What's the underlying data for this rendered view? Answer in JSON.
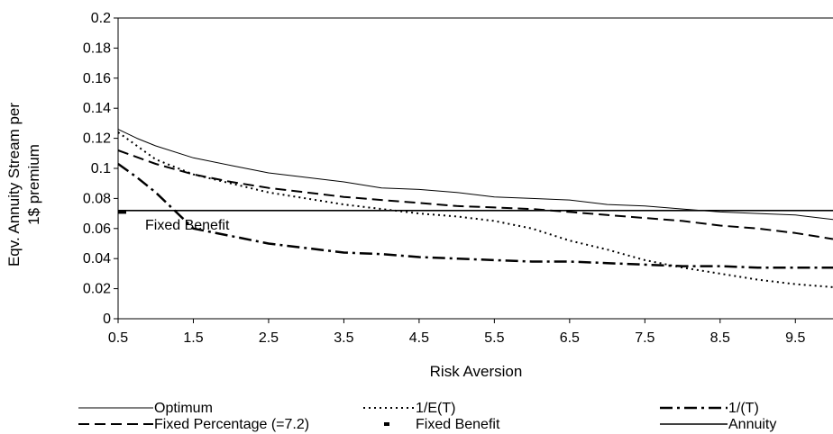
{
  "chart_data": {
    "type": "line",
    "xlabel": "Risk Aversion",
    "ylabel_lines": [
      "Eqv. Annuity Stream per",
      "1$ premium"
    ],
    "xlim": [
      0.5,
      10
    ],
    "ylim": [
      0,
      0.2
    ],
    "x_ticks": [
      "0.5",
      "1.5",
      "2.5",
      "3.5",
      "4.5",
      "5.5",
      "6.5",
      "7.5",
      "8.5",
      "9.5"
    ],
    "y_ticks": [
      "0",
      "0.02",
      "0.04",
      "0.06",
      "0.08",
      "0.1",
      "0.12",
      "0.14",
      "0.16",
      "0.18",
      "0.2"
    ],
    "grid": false,
    "legend_position": "bottom",
    "annotation": "Fixed Benefit",
    "series": [
      {
        "name": "Optimum",
        "style": "solid-thin",
        "x": [
          0.5,
          0.75,
          1,
          1.5,
          2,
          2.5,
          3,
          3.5,
          4,
          4.5,
          5,
          5.5,
          6,
          6.5,
          7,
          7.5,
          8,
          8.5,
          9,
          9.5,
          10
        ],
        "y": [
          0.126,
          0.12,
          0.115,
          0.107,
          0.102,
          0.097,
          0.094,
          0.091,
          0.087,
          0.086,
          0.084,
          0.081,
          0.08,
          0.079,
          0.076,
          0.075,
          0.073,
          0.071,
          0.07,
          0.069,
          0.066
        ]
      },
      {
        "name": "1/E(T)",
        "style": "dotted",
        "x": [
          0.5,
          0.75,
          1,
          1.5,
          2,
          2.5,
          3,
          3.5,
          4,
          4.5,
          5,
          5.5,
          6,
          6.5,
          7,
          7.5,
          8,
          8.5,
          9,
          9.5,
          10
        ],
        "y": [
          0.124,
          0.115,
          0.106,
          0.096,
          0.09,
          0.084,
          0.08,
          0.076,
          0.073,
          0.07,
          0.068,
          0.065,
          0.06,
          0.052,
          0.046,
          0.039,
          0.034,
          0.03,
          0.026,
          0.023,
          0.021
        ]
      },
      {
        "name": "1/(T)",
        "style": "dash-dot",
        "x": [
          0.5,
          0.75,
          1,
          1.5,
          2,
          2.5,
          3,
          3.5,
          4,
          4.5,
          5,
          5.5,
          6,
          6.5,
          7,
          7.5,
          8,
          8.5,
          9,
          9.5,
          10
        ],
        "y": [
          0.103,
          0.094,
          0.084,
          0.06,
          0.055,
          0.05,
          0.047,
          0.044,
          0.043,
          0.041,
          0.04,
          0.039,
          0.038,
          0.038,
          0.037,
          0.036,
          0.035,
          0.035,
          0.034,
          0.034,
          0.034
        ]
      },
      {
        "name": "Fixed Percentage (=7.2)",
        "style": "dashed",
        "x": [
          0.5,
          1,
          1.5,
          2,
          2.5,
          3,
          3.5,
          4,
          4.5,
          5,
          5.5,
          6,
          6.5,
          7,
          7.5,
          8,
          8.5,
          9,
          9.5,
          10
        ],
        "y": [
          0.112,
          0.103,
          0.096,
          0.091,
          0.087,
          0.084,
          0.081,
          0.079,
          0.077,
          0.075,
          0.074,
          0.073,
          0.071,
          0.069,
          0.067,
          0.065,
          0.062,
          0.06,
          0.057,
          0.053
        ]
      },
      {
        "name": "Fixed Benefit",
        "style": "marker",
        "x": [
          0.5
        ],
        "y": [
          0.071
        ]
      },
      {
        "name": "Annuity",
        "style": "solid",
        "x": [
          0.5,
          10
        ],
        "y": [
          0.072,
          0.072
        ]
      }
    ]
  }
}
